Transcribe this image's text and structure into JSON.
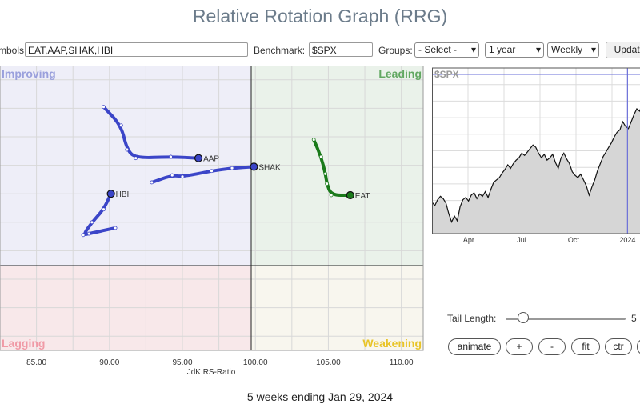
{
  "title": "Relative Rotation Graph (RRG)",
  "controls": {
    "symbols_label": "Symbols:",
    "symbols_value": "EAT,AAP,SHAK,HBI",
    "benchmark_label": "Benchmark:",
    "benchmark_value": "$SPX",
    "groups_label": "Groups:",
    "groups_value": "- Select -",
    "period_value": "1 year",
    "interval_value": "Weekly",
    "update_label": "Update"
  },
  "quadrants": {
    "improving": "Improving",
    "leading": "Leading",
    "lagging": "Lagging",
    "weakening": "Weakening"
  },
  "colors": {
    "improving": "#eeeef8",
    "leading": "#eaf2ea",
    "lagging": "#f8e8ea",
    "weakening": "#f8f6ee",
    "blue": "#3b45c8",
    "green": "#1a7a1a"
  },
  "chart_data": [
    {
      "type": "scatter",
      "xlabel": "JdK RS-Ratio",
      "xlim": [
        82.5,
        111.5
      ],
      "ylim": [
        89,
        109
      ],
      "x_ticks": [
        "85.00",
        "90.00",
        "95.00",
        "100.00",
        "105.00",
        "110.00"
      ],
      "center": [
        100,
        100
      ],
      "series": [
        {
          "name": "AAP",
          "color": "#3b45c8",
          "x": [
            89.6,
            90.8,
            91.2,
            91.8,
            94.2,
            96.1
          ],
          "y": [
            106.1,
            104.8,
            103.1,
            102.5,
            102.6,
            102.5
          ]
        },
        {
          "name": "SHAK",
          "color": "#3b45c8",
          "x": [
            92.9,
            94.3,
            95.0,
            97.0,
            98.4,
            99.9
          ],
          "y": [
            100.8,
            101.3,
            101.2,
            101.6,
            101.8,
            101.9
          ]
        },
        {
          "name": "EAT",
          "color": "#1a7a1a",
          "x": [
            104.0,
            104.5,
            104.8,
            104.9,
            105.2,
            106.5
          ],
          "y": [
            103.8,
            102.6,
            101.4,
            100.7,
            99.9,
            99.9
          ]
        },
        {
          "name": "HBI",
          "color": "#3b45c8",
          "x": [
            90.4,
            88.6,
            88.2,
            88.8,
            89.6,
            90.1
          ],
          "y": [
            97.6,
            97.2,
            97.1,
            98.0,
            98.9,
            100.0
          ]
        }
      ]
    },
    {
      "type": "line",
      "title": "$SPX",
      "x_ticks": [
        "Apr",
        "Jul",
        "Oct",
        "2024"
      ],
      "values": [
        4090,
        4060,
        4110,
        4140,
        4120,
        4080,
        3990,
        3920,
        3970,
        3930,
        4050,
        4110,
        4130,
        4100,
        4150,
        4170,
        4120,
        4160,
        4140,
        4180,
        4130,
        4200,
        4260,
        4280,
        4300,
        4340,
        4370,
        4410,
        4380,
        4420,
        4450,
        4470,
        4510,
        4490,
        4520,
        4550,
        4580,
        4560,
        4510,
        4470,
        4500,
        4450,
        4470,
        4500,
        4430,
        4380,
        4470,
        4510,
        4460,
        4420,
        4350,
        4320,
        4300,
        4330,
        4280,
        4230,
        4150,
        4220,
        4280,
        4360,
        4420,
        4480,
        4520,
        4560,
        4600,
        4650,
        4690,
        4710,
        4780,
        4740,
        4720,
        4780,
        4840,
        4890,
        4870,
        4930,
        4980,
        5010
      ],
      "ylim": [
        3820,
        5240
      ],
      "vlines": [
        0.905
      ]
    }
  ],
  "tail": {
    "label": "Tail Length:",
    "value": "5",
    "fraction": 0.05
  },
  "buttons": {
    "animate": "animate",
    "plus": "+",
    "minus": "-",
    "fit": "fit",
    "ctr": "ctr"
  },
  "footer": "5 weeks ending Jan 29, 2024"
}
